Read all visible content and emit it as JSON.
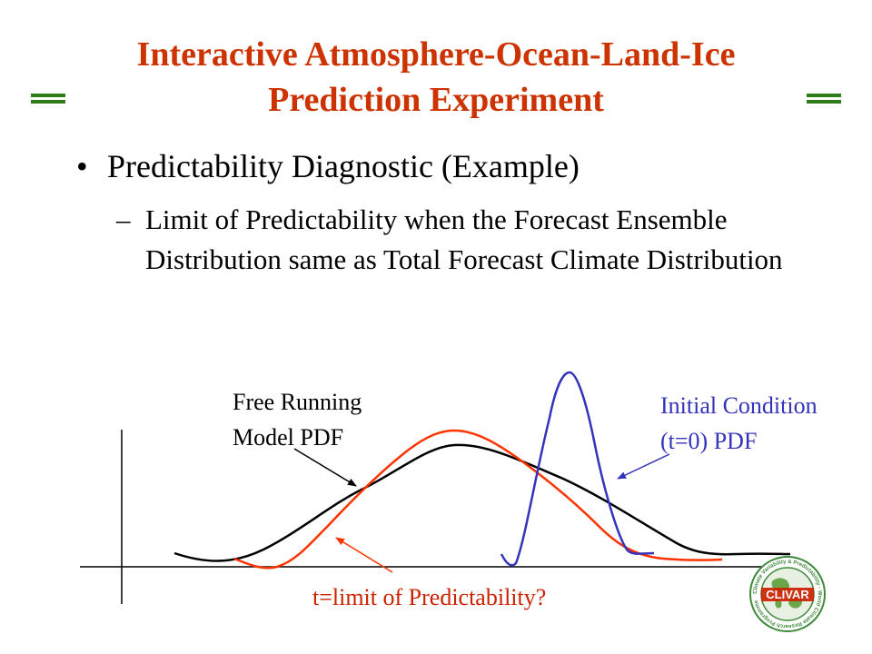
{
  "slide": {
    "title_line1": "Interactive Atmosphere-Ocean-Land-Ice",
    "title_line2": "Prediction Experiment",
    "bullet_marker": "•",
    "bullet": "Predictability Diagnostic (Example)",
    "sub_marker": "–",
    "sub_bullet": "Limit of Predictability when the Forecast Ensemble Distribution same as Total Forecast Climate Distribution"
  },
  "diagram": {
    "free_running_label_1": "Free Running",
    "free_running_label_2": "Model PDF",
    "initial_label_1": "Initial Condition",
    "initial_label_2": "(t=0) PDF",
    "limit_label": "t=limit of Predictability?",
    "colors": {
      "free_running": "#000000",
      "limit_curve": "#ff3300",
      "initial_curve": "#3333bb",
      "initial_text": "#3333bb",
      "limit_text": "#cc2200",
      "axis": "#000000"
    }
  },
  "logo": {
    "name": "CLIVAR",
    "ring_text": "Climate Variability & Predictability · World Climate Research Programme"
  }
}
